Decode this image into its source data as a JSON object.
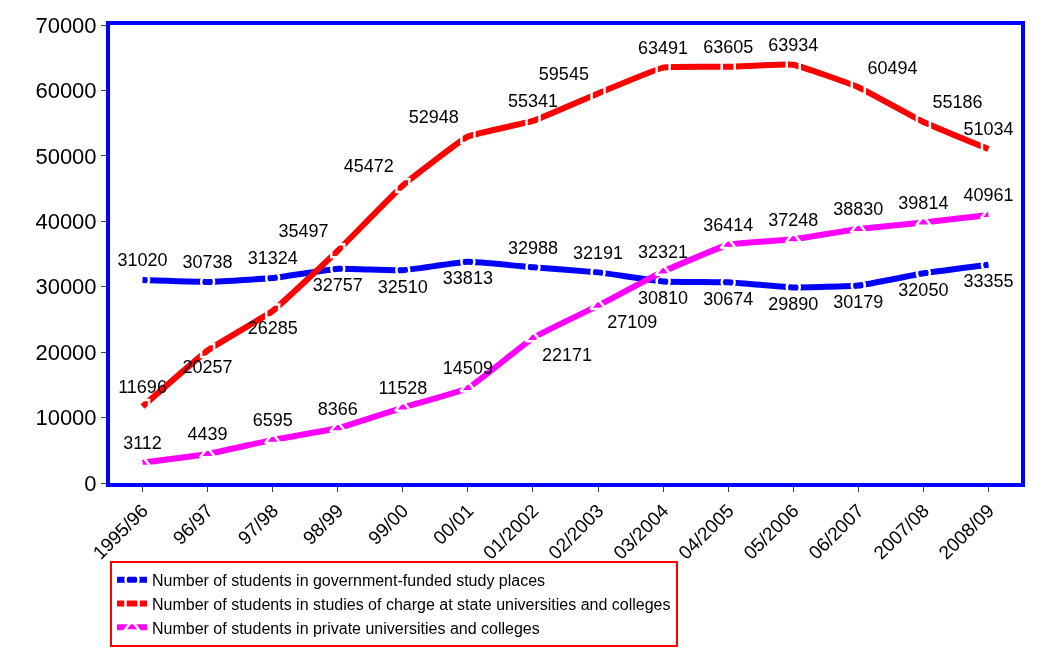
{
  "chart_data": {
    "type": "line",
    "categories": [
      "1995/96",
      "96/97",
      "97/98",
      "98/99",
      "99/00",
      "00/01",
      "01/2002",
      "02/2003",
      "03/2004",
      "04/2005",
      "05/2006",
      "06/2007",
      "2007/08",
      "2008/09"
    ],
    "series": [
      {
        "name": "Number of students in government-funded study places",
        "color": "#0000ff",
        "marker": "circle",
        "values": [
          31020,
          30738,
          31324,
          32757,
          32510,
          33813,
          32988,
          32191,
          30810,
          30674,
          29890,
          30179,
          32050,
          33355
        ]
      },
      {
        "name": "Number of students in studies of charge at state universities and colleges",
        "color": "#ff0000",
        "marker": "square",
        "values": [
          11696,
          20257,
          26285,
          35497,
          45472,
          52948,
          55341,
          59545,
          63491,
          63605,
          63934,
          60494,
          55186,
          51034
        ]
      },
      {
        "name": "Number of students in private universities and colleges",
        "color": "#ff00ff",
        "marker": "triangle",
        "values": [
          3112,
          4439,
          6595,
          8366,
          11528,
          14509,
          22171,
          27109,
          32321,
          36414,
          37248,
          38830,
          39814,
          40961
        ]
      }
    ],
    "ylim": [
      0,
      70000
    ],
    "yticks": [
      0,
      10000,
      20000,
      30000,
      40000,
      50000,
      60000,
      70000
    ],
    "grid": false,
    "legend": "bottom",
    "data_labels": true,
    "line_style": "solid"
  }
}
